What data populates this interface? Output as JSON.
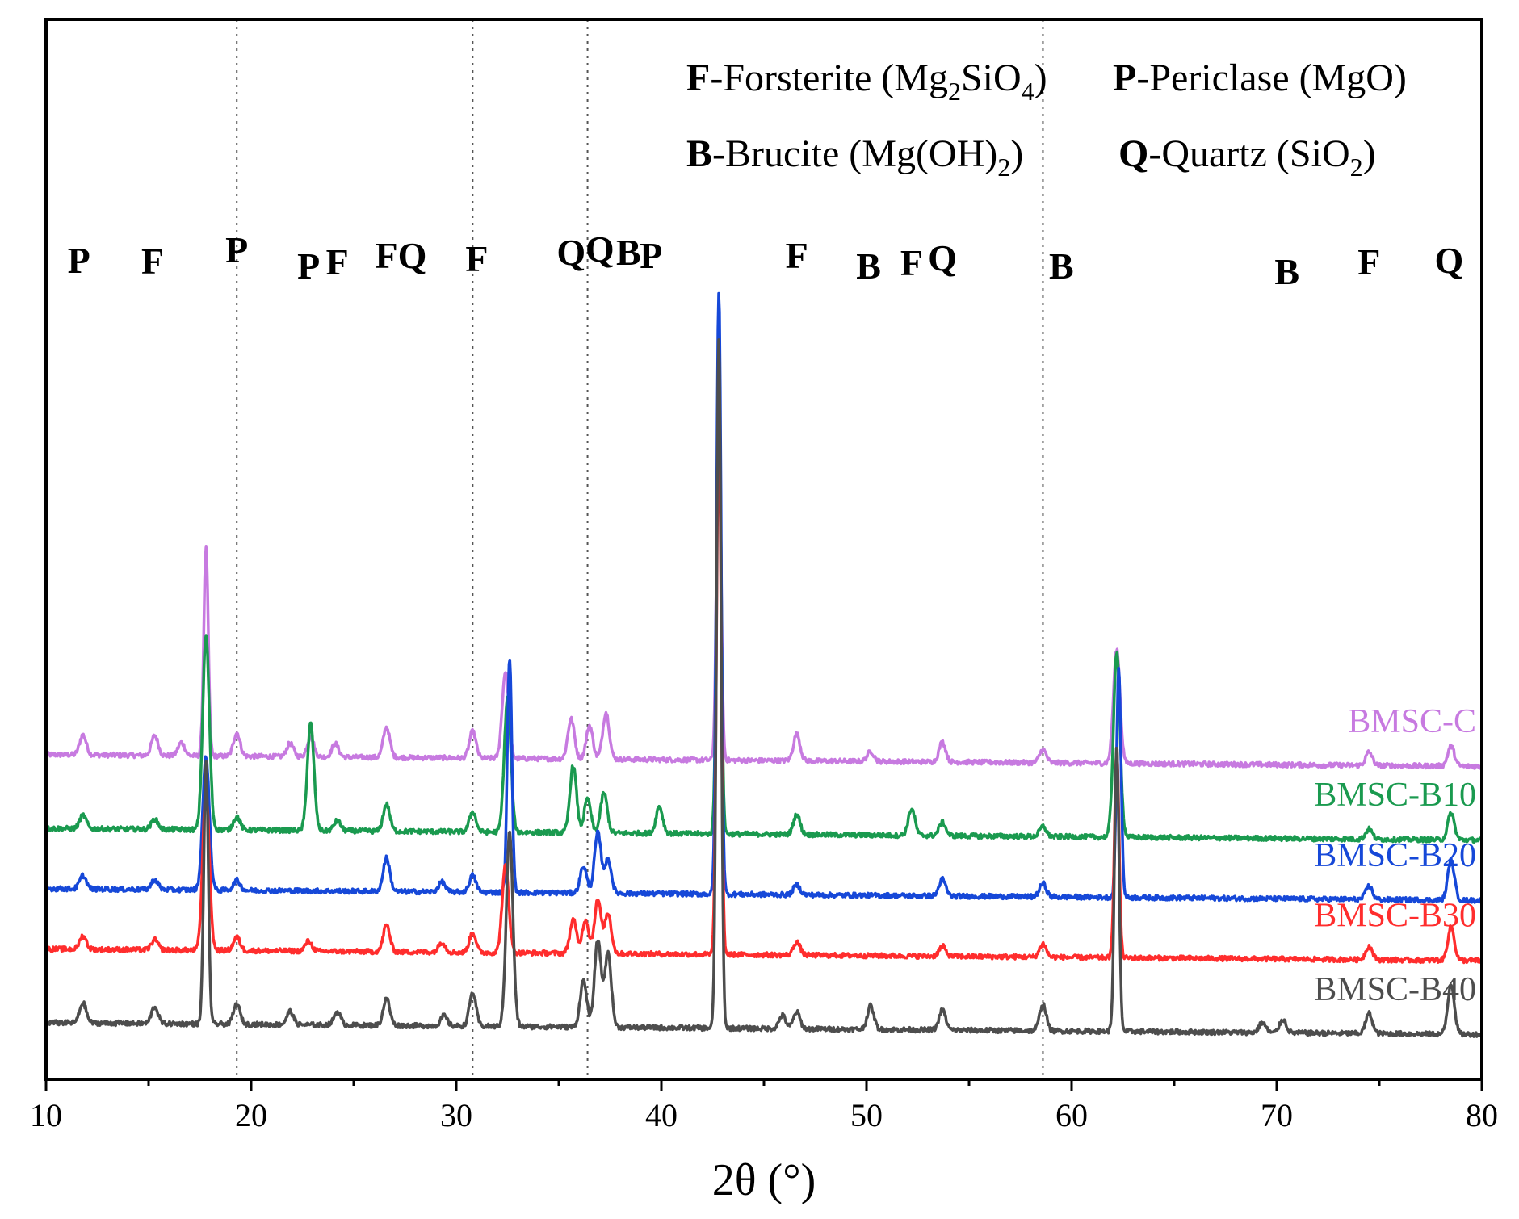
{
  "chart_data": {
    "type": "line",
    "title": "",
    "xlabel": "2θ (°)",
    "ylabel": "",
    "xlim": [
      10,
      80
    ],
    "xticks": [
      "10",
      "20",
      "30",
      "40",
      "50",
      "60",
      "70",
      "80"
    ],
    "xtick_values": [
      10,
      20,
      30,
      40,
      50,
      60,
      70,
      80
    ],
    "yticks": [],
    "reference_lines_2theta": [
      19.3,
      30.8,
      36.4,
      58.6
    ],
    "legend": [
      {
        "symbol": "F",
        "text": "-Forsterite (Mg",
        "sub1": "2",
        "mid": "SiO",
        "sub2": "4",
        "end": ")"
      },
      {
        "symbol": "P",
        "text": "-Periclase (MgO)"
      },
      {
        "symbol": "B",
        "text": "-Brucite (Mg(OH)",
        "sub1": "2",
        "end": ")"
      },
      {
        "symbol": "Q",
        "text": "-Quartz (SiO",
        "sub1": "2",
        "end": ")"
      }
    ],
    "peak_labels": [
      {
        "label": "P",
        "x": 11.6
      },
      {
        "label": "F",
        "x": 15.2
      },
      {
        "label": "P",
        "x": 19.3
      },
      {
        "label": "P",
        "x": 22.8
      },
      {
        "label": "F",
        "x": 24.2
      },
      {
        "label": "FQ",
        "x": 27.3
      },
      {
        "label": "F",
        "x": 31.0
      },
      {
        "label": "Q",
        "x": 35.6
      },
      {
        "label": "Q",
        "x": 37.0
      },
      {
        "label": "B",
        "x": 38.4
      },
      {
        "label": "P",
        "x": 39.5
      },
      {
        "label": "F",
        "x": 46.6
      },
      {
        "label": "B",
        "x": 50.1
      },
      {
        "label": "F",
        "x": 52.2
      },
      {
        "label": "Q",
        "x": 53.7
      },
      {
        "label": "B",
        "x": 59.5
      },
      {
        "label": "B",
        "x": 70.5
      },
      {
        "label": "F",
        "x": 74.5
      },
      {
        "label": "Q",
        "x": 78.4
      }
    ],
    "series": [
      {
        "name": "BMSC-C",
        "color": "#c77ae0",
        "baseline": 88,
        "peaks": [
          [
            11.8,
            6
          ],
          [
            15.3,
            6
          ],
          [
            16.6,
            4
          ],
          [
            17.8,
            62
          ],
          [
            19.3,
            7
          ],
          [
            21.9,
            4
          ],
          [
            22.9,
            6
          ],
          [
            24.1,
            4
          ],
          [
            26.6,
            9
          ],
          [
            30.8,
            8
          ],
          [
            32.4,
            26
          ],
          [
            35.6,
            12
          ],
          [
            36.5,
            10
          ],
          [
            37.3,
            14
          ],
          [
            42.8,
            100
          ],
          [
            46.6,
            8
          ],
          [
            50.2,
            3
          ],
          [
            53.7,
            6
          ],
          [
            58.6,
            4
          ],
          [
            62.2,
            34
          ],
          [
            74.5,
            4
          ],
          [
            78.5,
            6
          ]
        ]
      },
      {
        "name": "BMSC-B10",
        "color": "#1a9a4f",
        "baseline": 66,
        "peaks": [
          [
            11.8,
            4
          ],
          [
            15.3,
            3
          ],
          [
            17.8,
            58
          ],
          [
            19.3,
            4
          ],
          [
            22.9,
            32
          ],
          [
            24.2,
            3
          ],
          [
            26.6,
            8
          ],
          [
            30.8,
            6
          ],
          [
            32.5,
            40
          ],
          [
            35.7,
            20
          ],
          [
            36.4,
            10
          ],
          [
            37.2,
            12
          ],
          [
            39.9,
            8
          ],
          [
            42.8,
            135
          ],
          [
            46.6,
            6
          ],
          [
            52.2,
            8
          ],
          [
            53.7,
            4
          ],
          [
            58.6,
            3
          ],
          [
            62.2,
            55
          ],
          [
            74.5,
            3
          ],
          [
            78.5,
            8
          ]
        ]
      },
      {
        "name": "BMSC-B20",
        "color": "#1648d8",
        "baseline": 48,
        "peaks": [
          [
            11.8,
            4
          ],
          [
            15.3,
            3
          ],
          [
            17.8,
            40
          ],
          [
            19.3,
            3
          ],
          [
            26.6,
            10
          ],
          [
            29.3,
            3
          ],
          [
            30.8,
            5
          ],
          [
            32.6,
            70
          ],
          [
            36.2,
            8
          ],
          [
            36.9,
            18
          ],
          [
            37.4,
            10
          ],
          [
            42.8,
            180
          ],
          [
            46.6,
            3
          ],
          [
            53.7,
            5
          ],
          [
            58.6,
            4
          ],
          [
            62.3,
            68
          ],
          [
            74.5,
            4
          ],
          [
            78.5,
            12
          ]
        ]
      },
      {
        "name": "BMSC-B30",
        "color": "#ff2d2d",
        "baseline": 30,
        "peaks": [
          [
            11.8,
            4
          ],
          [
            15.3,
            3
          ],
          [
            17.8,
            48
          ],
          [
            19.3,
            4
          ],
          [
            22.8,
            3
          ],
          [
            26.6,
            8
          ],
          [
            29.3,
            3
          ],
          [
            30.8,
            6
          ],
          [
            32.4,
            26
          ],
          [
            35.7,
            10
          ],
          [
            36.3,
            10
          ],
          [
            36.9,
            16
          ],
          [
            37.4,
            12
          ],
          [
            42.8,
            160
          ],
          [
            46.6,
            4
          ],
          [
            53.7,
            3
          ],
          [
            58.6,
            4
          ],
          [
            62.2,
            62
          ],
          [
            74.5,
            4
          ],
          [
            78.5,
            10
          ]
        ]
      },
      {
        "name": "BMSC-B40",
        "color": "#4d4d4d",
        "baseline": 8,
        "peaks": [
          [
            11.8,
            6
          ],
          [
            15.3,
            5
          ],
          [
            17.8,
            78
          ],
          [
            19.3,
            6
          ],
          [
            21.9,
            4
          ],
          [
            24.2,
            4
          ],
          [
            26.6,
            8
          ],
          [
            29.4,
            3
          ],
          [
            30.8,
            10
          ],
          [
            32.6,
            58
          ],
          [
            36.2,
            14
          ],
          [
            36.9,
            26
          ],
          [
            37.4,
            22
          ],
          [
            42.8,
            205
          ],
          [
            45.9,
            4
          ],
          [
            46.6,
            5
          ],
          [
            50.2,
            7
          ],
          [
            53.7,
            6
          ],
          [
            58.6,
            8
          ],
          [
            62.2,
            85
          ],
          [
            69.3,
            3
          ],
          [
            70.3,
            4
          ],
          [
            74.5,
            6
          ],
          [
            78.5,
            15
          ]
        ]
      }
    ]
  }
}
